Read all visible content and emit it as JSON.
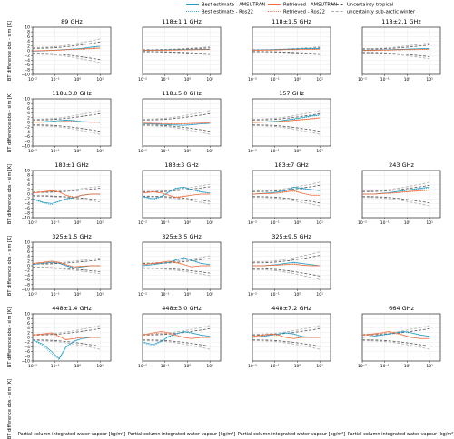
{
  "legend": {
    "items": [
      {
        "label": "Best estimate - AMSUTRAN",
        "color": "#1f9bc4",
        "dash": "solid"
      },
      {
        "label": "Best estimate - Ros22",
        "color": "#1f9bc4",
        "dash": "dotted"
      },
      {
        "label": "Retrieved - AMSUTRAN",
        "color": "#ef6c3c",
        "dash": "solid"
      },
      {
        "label": "Retrieved - Ros22",
        "color": "#ef6c3c",
        "dash": "dotted"
      },
      {
        "label": "Uncertainty tropical",
        "color": "#555555",
        "dash": "dashed"
      },
      {
        "label": "uncertainty sub-arctic winter",
        "color": "#aaaaaa",
        "dash": "dashed"
      }
    ]
  },
  "axes": {
    "ylabel": "BT difference obs - sim [K]",
    "xlabel": "Partial column integrated water vapour [kg/m²]",
    "y_ticks": [
      "10",
      "8",
      "6",
      "4",
      "2",
      "0",
      "−2",
      "−4",
      "−6",
      "−8",
      "−10"
    ],
    "x_ticks": [
      "10⁻²",
      "10⁻¹",
      "10⁰",
      "10¹"
    ]
  },
  "chart_data": {
    "type": "line",
    "xscale": "log",
    "xlim": [
      0.01,
      30
    ],
    "ylim": [
      -10,
      10
    ],
    "grid": true,
    "panels": [
      {
        "title": "89 GHz",
        "unc": 3,
        "series": [
          [
            -0.2,
            0,
            0.2,
            0.4,
            0.6,
            0.8,
            1.0,
            1.6,
            2.0
          ],
          [
            -0.1,
            0,
            0.1,
            0.3,
            0.5,
            0.7,
            0.9,
            1.4,
            1.8
          ],
          [
            0,
            0.1,
            0.2,
            0.3,
            0.5,
            0.6,
            0.8,
            1.0,
            1.2
          ],
          [
            0,
            0.1,
            0.1,
            0.2,
            0.4,
            0.5,
            0.6,
            0.8,
            1.0
          ]
        ]
      },
      {
        "title": "118±1.1 GHz",
        "unc": 1,
        "series": [
          [
            0.2,
            0.3,
            0.3,
            0.4,
            0.5,
            0.5,
            0.6,
            0.6,
            0.7
          ],
          [
            0.2,
            0.2,
            0.3,
            0.4,
            0.4,
            0.5,
            0.6,
            0.6,
            0.6
          ],
          [
            0.1,
            0.2,
            0.2,
            0.3,
            0.3,
            0.4,
            0.4,
            0.5,
            0.5
          ],
          [
            0.1,
            0.1,
            0.2,
            0.2,
            0.3,
            0.3,
            0.4,
            0.4,
            0.5
          ]
        ]
      },
      {
        "title": "118±1.5 GHz",
        "unc": 1,
        "series": [
          [
            0.3,
            0.4,
            0.5,
            0.6,
            0.7,
            0.8,
            0.9,
            1.0,
            1.0
          ],
          [
            0.3,
            0.4,
            0.4,
            0.5,
            0.6,
            0.7,
            0.8,
            0.9,
            0.9
          ],
          [
            0.2,
            0.3,
            0.3,
            0.4,
            0.5,
            0.5,
            0.6,
            0.6,
            0.7
          ],
          [
            0.2,
            0.2,
            0.3,
            0.3,
            0.4,
            0.4,
            0.5,
            0.5,
            0.6
          ]
        ]
      },
      {
        "title": "118±2.1 GHz",
        "unc": 2,
        "series": [
          [
            0.2,
            0.3,
            0.4,
            0.5,
            0.6,
            0.7,
            0.8,
            0.9,
            1.0
          ],
          [
            0.2,
            0.3,
            0.3,
            0.4,
            0.5,
            0.6,
            0.7,
            0.8,
            0.9
          ],
          [
            0.1,
            0.2,
            0.3,
            0.3,
            0.4,
            0.5,
            0.5,
            0.6,
            0.6
          ],
          [
            0.1,
            0.1,
            0.2,
            0.3,
            0.3,
            0.4,
            0.4,
            0.5,
            0.5
          ]
        ]
      },
      {
        "title": "118±3.0 GHz",
        "unc": 3,
        "series": [
          [
            0.2,
            0.3,
            0.5,
            0.8,
            1.0,
            0.8,
            0.4,
            0.2,
            0.1
          ],
          [
            0.2,
            0.3,
            0.5,
            0.7,
            0.9,
            0.7,
            0.3,
            0.2,
            0.1
          ],
          [
            0.1,
            0.1,
            0.2,
            0.3,
            0.5,
            0.4,
            0.2,
            0.1,
            0.1
          ],
          [
            0.1,
            0.1,
            0.2,
            0.3,
            0.4,
            0.3,
            0.2,
            0.1,
            0.0
          ]
        ]
      },
      {
        "title": "118±5.0 GHz",
        "unc": 3,
        "series": [
          [
            -0.5,
            -0.7,
            -0.8,
            -1.0,
            -1.1,
            -1.2,
            -1.0,
            -0.6,
            -0.4
          ],
          [
            -0.5,
            -0.6,
            -0.8,
            -0.9,
            -1.0,
            -1.1,
            -0.9,
            -0.6,
            -0.4
          ],
          [
            -0.3,
            -0.4,
            -0.5,
            -0.6,
            -0.7,
            -0.6,
            -0.4,
            -0.3,
            -0.2
          ],
          [
            -0.3,
            -0.3,
            -0.4,
            -0.5,
            -0.6,
            -0.5,
            -0.4,
            -0.3,
            -0.2
          ]
        ]
      },
      {
        "title": "157 GHz",
        "unc": 3,
        "series": [
          [
            0,
            0.2,
            0.4,
            0.6,
            1.0,
            1.5,
            2.0,
            2.8,
            3.2
          ],
          [
            0,
            0.2,
            0.3,
            0.5,
            0.9,
            1.3,
            1.8,
            2.5,
            3.0
          ],
          [
            0,
            0.1,
            0.2,
            0.4,
            0.6,
            0.9,
            1.2,
            1.6,
            2.0
          ],
          [
            0,
            0.1,
            0.2,
            0.3,
            0.5,
            0.8,
            1.0,
            1.4,
            1.8
          ]
        ]
      },
      {
        "title": "183±1 GHz",
        "unc": 2,
        "series": [
          [
            -2.0,
            -3.5,
            -4.0,
            -3.0,
            -2.0,
            -1.5,
            -0.5,
            0,
            0
          ],
          [
            -2.2,
            -3.8,
            -4.5,
            -3.2,
            -2.2,
            -1.6,
            -0.6,
            0,
            0
          ],
          [
            0.5,
            1.0,
            1.5,
            1.0,
            -0.5,
            -1.5,
            -0.5,
            0,
            0
          ],
          [
            0.4,
            0.8,
            1.2,
            0.8,
            -0.4,
            -1.2,
            -0.4,
            0,
            0
          ]
        ]
      },
      {
        "title": "183±3 GHz",
        "unc": 2.5,
        "series": [
          [
            -1.0,
            -2.0,
            -1.0,
            1.0,
            2.5,
            3.0,
            2.0,
            1.0,
            0.5
          ],
          [
            -1.2,
            -2.3,
            -1.2,
            0.8,
            2.2,
            2.7,
            1.8,
            0.8,
            0.4
          ],
          [
            0.5,
            1.0,
            0.5,
            -0.5,
            -1.5,
            -1.0,
            -0.5,
            0,
            0
          ],
          [
            0.4,
            0.8,
            0.4,
            -0.4,
            -1.2,
            -0.8,
            -0.4,
            0,
            0
          ]
        ]
      },
      {
        "title": "183±7 GHz",
        "unc": 3,
        "series": [
          [
            0,
            0.3,
            0.6,
            1.0,
            1.5,
            3.0,
            2.5,
            2.0,
            1.5
          ],
          [
            0,
            0.3,
            0.5,
            0.9,
            1.3,
            2.7,
            2.2,
            1.8,
            1.4
          ],
          [
            0,
            0.2,
            0.3,
            0.5,
            1.0,
            1.5,
            0.5,
            -0.5,
            -0.5
          ],
          [
            0,
            0.2,
            0.3,
            0.4,
            0.8,
            1.2,
            0.4,
            -0.4,
            -0.4
          ]
        ]
      },
      {
        "title": "243 GHz",
        "unc": 3,
        "series": [
          [
            0,
            0,
            0.3,
            0.6,
            1.0,
            1.5,
            2.0,
            2.5,
            3.0
          ],
          [
            0,
            0,
            0.3,
            0.5,
            0.9,
            1.3,
            1.8,
            2.2,
            2.7
          ],
          [
            0,
            0,
            0.2,
            0.4,
            0.6,
            0.9,
            1.2,
            1.5,
            1.8
          ],
          [
            0,
            0,
            0.2,
            0.3,
            0.5,
            0.8,
            1.0,
            1.3,
            1.6
          ]
        ]
      },
      {
        "title": "325±1.5 GHz",
        "unc": 2,
        "series": [
          [
            0.5,
            1.0,
            1.5,
            1.0,
            0,
            -1.0,
            -0.5,
            0,
            0
          ],
          [
            0.5,
            1.2,
            1.7,
            1.2,
            0.2,
            -0.8,
            -0.4,
            0,
            0
          ],
          [
            1.0,
            1.5,
            2.0,
            1.5,
            0.5,
            -0.5,
            -0.2,
            0,
            0
          ],
          [
            0.8,
            1.2,
            1.6,
            1.2,
            0.4,
            -0.4,
            -0.2,
            0,
            0
          ]
        ]
      },
      {
        "title": "325±3.5 GHz",
        "unc": 2.5,
        "series": [
          [
            0,
            0.5,
            1.0,
            1.5,
            2.5,
            3.5,
            2.5,
            1.0,
            0.5
          ],
          [
            0,
            0.4,
            0.9,
            1.3,
            2.2,
            3.2,
            2.2,
            0.9,
            0.4
          ],
          [
            0.5,
            1.0,
            1.5,
            2.0,
            1.5,
            0.5,
            -0.5,
            0,
            0
          ],
          [
            0.4,
            0.8,
            1.2,
            1.6,
            1.2,
            0.4,
            -0.4,
            0,
            0
          ]
        ]
      },
      {
        "title": "325±9.5 GHz",
        "unc": 3.5,
        "series": [
          [
            0,
            0,
            0.3,
            0.6,
            1.0,
            1.5,
            1.0,
            0.5,
            0
          ],
          [
            0,
            0,
            0.3,
            0.5,
            0.9,
            1.3,
            0.9,
            0.4,
            0
          ],
          [
            0,
            0,
            0.2,
            0.3,
            0.5,
            0.8,
            0.3,
            0,
            0
          ],
          [
            0,
            0,
            0.2,
            0.3,
            0.4,
            0.6,
            0.2,
            0,
            0
          ]
        ]
      },
      {
        "title": "448±1.4 GHz",
        "unc": 3,
        "series": [
          [
            -1.0,
            -3.0,
            -6.0,
            -9.0,
            -4.0,
            -1.5,
            -0.5,
            0,
            0
          ],
          [
            -1.2,
            -3.5,
            -7.0,
            -9.5,
            -4.5,
            -1.8,
            -0.6,
            0,
            0
          ],
          [
            1.0,
            1.5,
            2.0,
            0.5,
            -1.0,
            -0.5,
            0,
            0,
            0
          ],
          [
            0.8,
            1.2,
            1.6,
            0.4,
            -0.8,
            -0.4,
            0,
            0,
            0
          ]
        ]
      },
      {
        "title": "448±3.0 GHz",
        "unc": 3,
        "series": [
          [
            -2.0,
            -3.0,
            -1.5,
            0.5,
            1.5,
            2.5,
            2.0,
            1.0,
            0.5
          ],
          [
            -2.3,
            -3.5,
            -1.8,
            0.3,
            1.3,
            2.3,
            1.8,
            0.9,
            0.4
          ],
          [
            1.0,
            2.0,
            2.5,
            2.0,
            1.0,
            0,
            -0.5,
            0,
            0
          ],
          [
            0.8,
            1.6,
            2.0,
            1.6,
            0.8,
            0,
            -0.4,
            0,
            0
          ]
        ]
      },
      {
        "title": "448±7.2 GHz",
        "unc": 3,
        "series": [
          [
            0,
            0.5,
            1.0,
            1.5,
            2.0,
            1.5,
            0.5,
            0,
            0
          ],
          [
            0,
            0.4,
            0.9,
            1.3,
            1.8,
            1.3,
            0.4,
            0,
            0
          ],
          [
            0.5,
            1.0,
            1.5,
            1.0,
            0,
            -0.5,
            0,
            0,
            0
          ],
          [
            0.4,
            0.8,
            1.2,
            0.8,
            0,
            -0.4,
            0,
            0,
            0
          ]
        ]
      },
      {
        "title": "664 GHz",
        "unc": 3,
        "series": [
          [
            0,
            0.5,
            1.0,
            1.5,
            2.0,
            2.5,
            2.0,
            1.0,
            0.5
          ],
          [
            0,
            0.4,
            0.9,
            1.3,
            1.8,
            2.3,
            1.8,
            0.9,
            0.4
          ],
          [
            1.0,
            1.5,
            2.0,
            2.5,
            2.0,
            1.0,
            0,
            -0.5,
            -0.5
          ],
          [
            0.8,
            1.2,
            1.6,
            2.0,
            1.6,
            0.8,
            0,
            -0.4,
            -0.4
          ]
        ]
      }
    ],
    "x": [
      0.01,
      0.03,
      0.07,
      0.15,
      0.3,
      0.7,
      1.5,
      4,
      10
    ]
  }
}
